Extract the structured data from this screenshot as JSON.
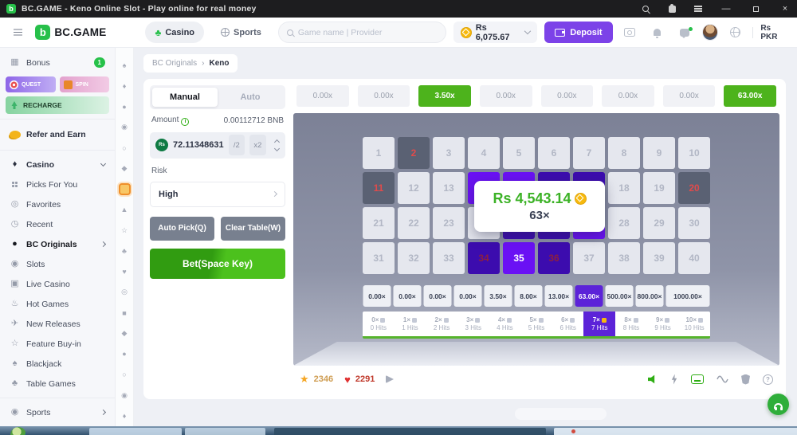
{
  "window": {
    "title": "BC.GAME - Keno Online Slot - Play online for real money"
  },
  "topnav": {
    "brand": "BC.GAME",
    "tabs": [
      {
        "label": "Casino",
        "active": true
      },
      {
        "label": "Sports",
        "active": false
      }
    ],
    "search_placeholder": "Game name | Provider",
    "balance": "Rs 6,075.67",
    "deposit_label": "Deposit",
    "currency": "Rs PKR"
  },
  "sidebar": {
    "bonus_label": "Bonus",
    "bonus_badge": "1",
    "quest_label": "QUEST",
    "spin_label": "SPIN",
    "recharge_label": "RECHARGE",
    "refer_label": "Refer and Earn",
    "casino_header": "Casino",
    "casino_items": [
      {
        "label": "Picks For You",
        "icon": "picks-icon",
        "active": false,
        "chevron": false
      },
      {
        "label": "Favorites",
        "icon": "favorites-icon",
        "active": false,
        "chevron": false
      },
      {
        "label": "Recent",
        "icon": "recent-icon",
        "active": false,
        "chevron": false
      },
      {
        "label": "BC Originals",
        "icon": "bc-originals-icon",
        "active": true,
        "chevron": true
      },
      {
        "label": "Slots",
        "icon": "slots-icon",
        "active": false,
        "chevron": false
      },
      {
        "label": "Live Casino",
        "icon": "live-casino-icon",
        "active": false,
        "chevron": false
      },
      {
        "label": "Hot Games",
        "icon": "hot-games-icon",
        "active": false,
        "chevron": false
      },
      {
        "label": "New Releases",
        "icon": "new-releases-icon",
        "active": false,
        "chevron": false
      },
      {
        "label": "Feature Buy-in",
        "icon": "feature-buyin-icon",
        "active": false,
        "chevron": false
      },
      {
        "label": "Blackjack",
        "icon": "blackjack-icon",
        "active": false,
        "chevron": false
      },
      {
        "label": "Table Games",
        "icon": "table-games-icon",
        "active": false,
        "chevron": false
      }
    ],
    "sports_label": "Sports"
  },
  "breadcrumb": {
    "parent": "BC Originals",
    "separator": "›",
    "current": "Keno"
  },
  "controls": {
    "manual_label": "Manual",
    "auto_label": "Auto",
    "amount_label": "Amount",
    "amount_converted": "0.00112712 BNB",
    "coin_symbol": "Rs",
    "amount_value": "72.11348631",
    "half_label": "/2",
    "double_label": "x2",
    "risk_label": "Risk",
    "risk_value": "High",
    "auto_pick_label": "Auto Pick(Q)",
    "clear_table_label": "Clear Table(W)",
    "bet_label": "Bet(Space Key)"
  },
  "history": [
    {
      "label": "0.00x",
      "win": false
    },
    {
      "label": "0.00x",
      "win": false
    },
    {
      "label": "3.50x",
      "win": true
    },
    {
      "label": "0.00x",
      "win": false
    },
    {
      "label": "0.00x",
      "win": false
    },
    {
      "label": "0.00x",
      "win": false
    },
    {
      "label": "0.00x",
      "win": false
    },
    {
      "label": "63.00x",
      "win": true
    }
  ],
  "keno": {
    "numbers_total": 40,
    "drawn_missed": [
      2,
      11,
      20
    ],
    "picked": [
      14,
      15,
      27,
      35
    ],
    "picked_hit": [
      16,
      17,
      25,
      26,
      34,
      36
    ]
  },
  "win_popup": {
    "amount": "Rs 4,543.14",
    "multiplier": "63×"
  },
  "payout": {
    "values": [
      "0.00×",
      "0.00×",
      "0.00×",
      "0.00×",
      "3.50×",
      "8.00×",
      "13.00×",
      "63.00×",
      "500.00×",
      "800.00×",
      "1000.00×"
    ],
    "active_index": 7
  },
  "hits": {
    "items": [
      {
        "mult": "0×",
        "label": "0 Hits"
      },
      {
        "mult": "1×",
        "label": "1 Hits"
      },
      {
        "mult": "2×",
        "label": "2 Hits"
      },
      {
        "mult": "3×",
        "label": "3 Hits"
      },
      {
        "mult": "4×",
        "label": "4 Hits"
      },
      {
        "mult": "5×",
        "label": "5 Hits"
      },
      {
        "mult": "6×",
        "label": "6 Hits"
      },
      {
        "mult": "7×",
        "label": "7 Hits"
      },
      {
        "mult": "8×",
        "label": "8 Hits"
      },
      {
        "mult": "9×",
        "label": "9 Hits"
      },
      {
        "mult": "10×",
        "label": "10 Hits"
      }
    ],
    "active_index": 7
  },
  "social": {
    "stars": "2346",
    "likes": "2291"
  },
  "colors": {
    "accent_green": "#4db31c",
    "picked_purple": "#6a11f4",
    "hit_purple": "#3c0cae",
    "deposit_purple": "#7c42e8",
    "win_green": "#3cb226",
    "miss_red": "#e04b4b"
  }
}
